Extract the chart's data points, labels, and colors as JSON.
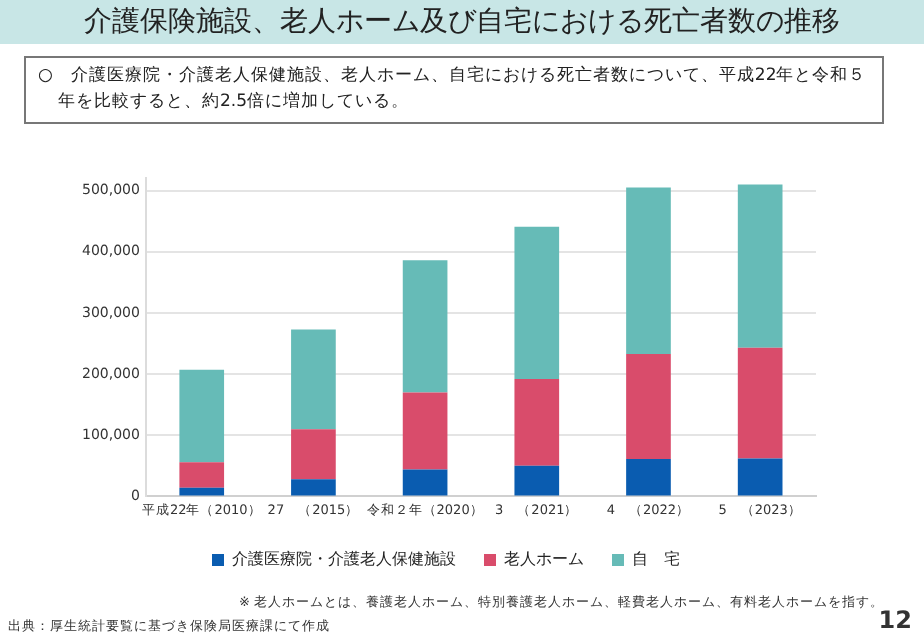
{
  "chart_data": {
    "type": "bar",
    "stacked": true,
    "title": "介護保険施設、老人ホーム及び自宅における死亡者数の推移",
    "subtitle": "○　介護医療院・介護老人保健施設、老人ホーム、自宅における死亡者数について、平成22年と令和５年を比較すると、約2.5倍に増加している。",
    "categories": [
      "平成22年（2010）",
      "27　（2015）",
      "令和２年（2020）",
      "3　（2021）",
      "4　（2022）",
      "5　（2023）"
    ],
    "series": [
      {
        "name": "介護医療院・介護老人保健施設",
        "color": "#0a5cb0",
        "values": [
          14000,
          28000,
          44000,
          50000,
          61000,
          62000
        ]
      },
      {
        "name": "老人ホーム",
        "color": "#d94c6b",
        "values": [
          42000,
          82000,
          126000,
          142000,
          172000,
          181000
        ]
      },
      {
        "name": "自　宅",
        "color": "#66bbb7",
        "values": [
          151000,
          163000,
          216000,
          249000,
          272000,
          267000
        ]
      }
    ],
    "ylim": [
      0,
      520000
    ],
    "yticks": [
      0,
      {
        "value": 100000,
        "label": "100,000"
      },
      {
        "value": 200000,
        "label": "200,000"
      },
      {
        "value": 300000,
        "label": "300,000"
      },
      {
        "value": 400000,
        "label": "400,000"
      },
      {
        "value": 500000,
        "label": "500,000"
      }
    ],
    "grid": "y",
    "legend": "bottom",
    "annotations": [
      "※ 老人ホームとは、養護老人ホーム、特別養護老人ホーム、軽費老人ホーム、有料老人ホームを指す。",
      "出典：厚生統計要覧に基づき保険局医療課にて作成",
      "12"
    ]
  }
}
